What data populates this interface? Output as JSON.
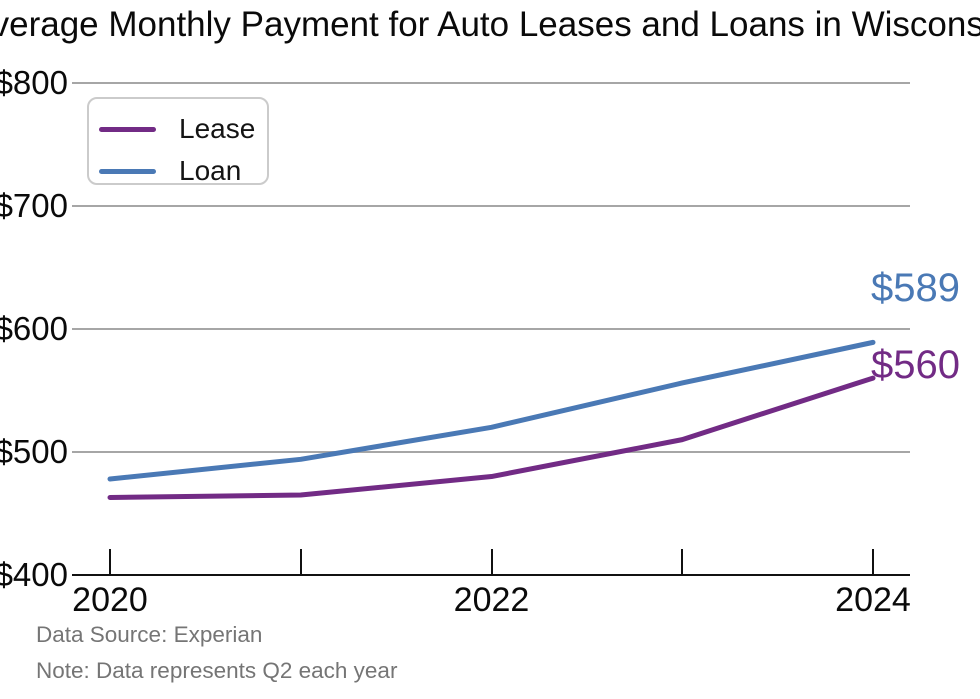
{
  "title": "Average Monthly Payment for Auto Leases and Loans in Wisconsin",
  "legend": {
    "items": [
      {
        "label": "Lease"
      },
      {
        "label": "Loan"
      }
    ]
  },
  "footer": {
    "source": "Data Source: Experian",
    "note": "Note: Data represents Q2 each year"
  },
  "colors": {
    "lease": "#722B85",
    "loan": "#4A79B5",
    "grid": "#A6A6A6",
    "axis": "#111111",
    "footer_text": "#757575"
  },
  "chart_data": {
    "type": "line",
    "title": "Average Monthly Payment for Auto Leases and Loans in Wisconsin",
    "x": [
      2020,
      2021,
      2022,
      2023,
      2024
    ],
    "series": [
      {
        "name": "Lease",
        "color": "#722B85",
        "values": [
          463,
          465,
          480,
          510,
          560
        ],
        "end_label": "$560"
      },
      {
        "name": "Loan",
        "color": "#4A79B5",
        "values": [
          478,
          494,
          520,
          556,
          589
        ],
        "end_label": "$589"
      }
    ],
    "y_ticks": [
      400,
      500,
      600,
      700,
      800
    ],
    "y_tick_labels": [
      "$400",
      "$500",
      "$600",
      "$700",
      "$800"
    ],
    "x_label_years": [
      2020,
      2022,
      2024
    ],
    "x_tick_years": [
      2020,
      2021,
      2022,
      2023,
      2024
    ],
    "ylim": [
      400,
      800
    ],
    "grid": "horizontal",
    "legend_position": "top-left",
    "annotations": [
      "$589",
      "$560"
    ],
    "xlabel": "",
    "ylabel": ""
  }
}
